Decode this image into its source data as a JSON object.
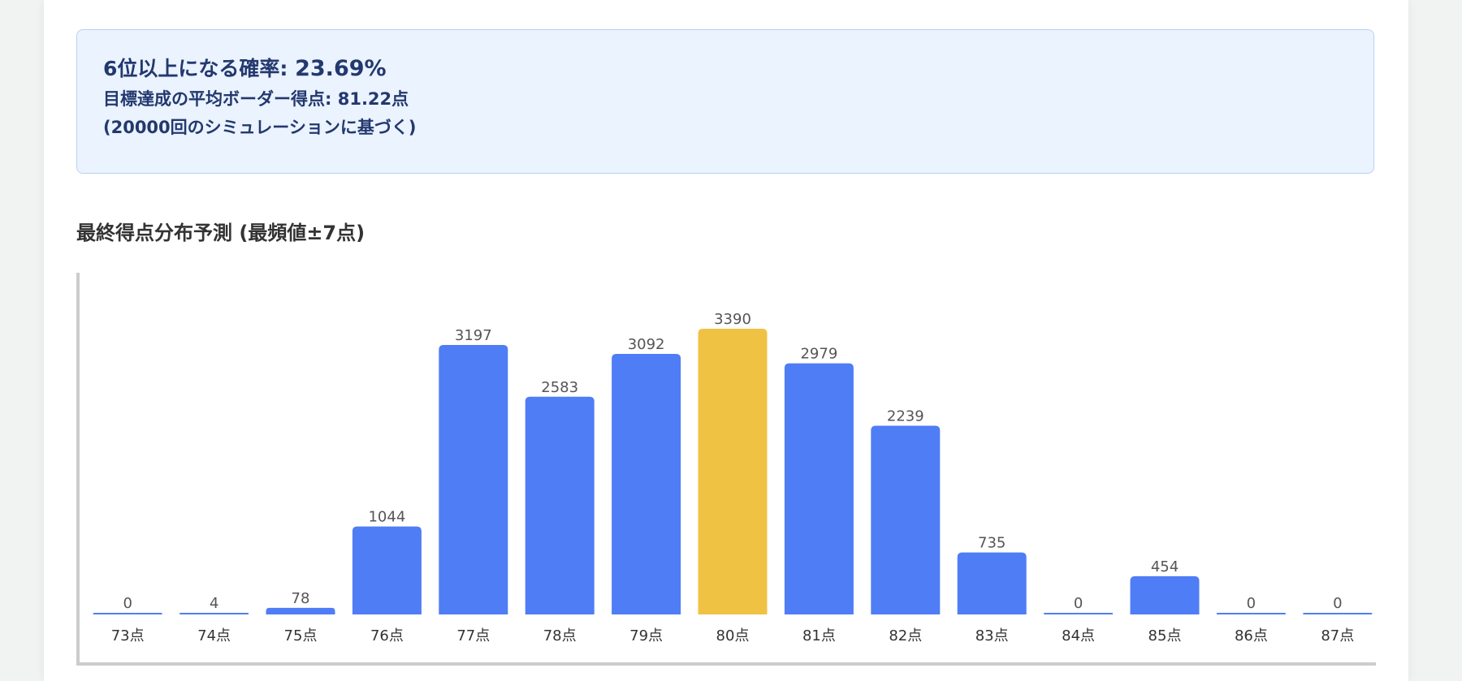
{
  "summary": {
    "probability_label": "6位以上になる確率: ",
    "probability_value": "23.69%",
    "border_label": "目標達成の平均ボーダー得点: ",
    "border_value": "81.22点",
    "note": "(20000回のシミュレーションに基づく)"
  },
  "section_title": "最終得点分布予測 (最頻値±7点)",
  "chart_data": {
    "type": "bar",
    "title": "最終得点分布予測 (最頻値±7点)",
    "categories": [
      "73点",
      "74点",
      "75点",
      "76点",
      "77点",
      "78点",
      "79点",
      "80点",
      "81点",
      "82点",
      "83点",
      "84点",
      "85点",
      "86点",
      "87点"
    ],
    "values": [
      0,
      4,
      78,
      1044,
      3197,
      2583,
      3092,
      3390,
      2979,
      2239,
      735,
      0,
      454,
      0,
      0
    ],
    "value_labels": [
      "0",
      "4",
      "78",
      "1044",
      "3197",
      "2583",
      "3092",
      "3390",
      "2979",
      "2239",
      "735",
      "0",
      "454",
      "0",
      "0"
    ],
    "highlight_category": "80点",
    "colors": {
      "bar": "#4f7df5",
      "highlight": "#f0c244",
      "label": "#555555"
    },
    "grid": false
  }
}
